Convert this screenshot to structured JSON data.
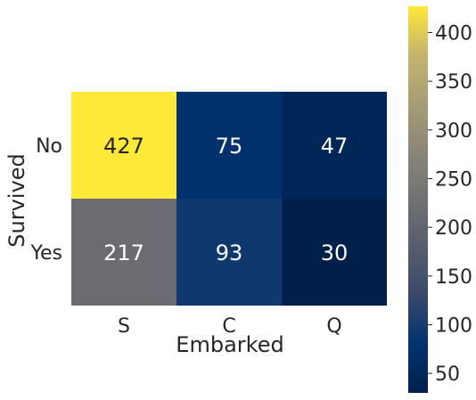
{
  "chart_data": {
    "type": "heatmap",
    "title": "",
    "xlabel": "Embarked",
    "ylabel": "Survived",
    "x_categories": [
      "S",
      "C",
      "Q"
    ],
    "y_categories": [
      "No",
      "Yes"
    ],
    "values": [
      [
        427,
        75,
        47
      ],
      [
        217,
        93,
        30
      ]
    ],
    "annotated": true,
    "colormap": "cividis",
    "color_range": [
      30,
      427
    ],
    "colorbar_ticks": [
      50,
      100,
      150,
      200,
      250,
      300,
      350,
      400
    ],
    "grid": false,
    "legend": "colorbar-right"
  }
}
